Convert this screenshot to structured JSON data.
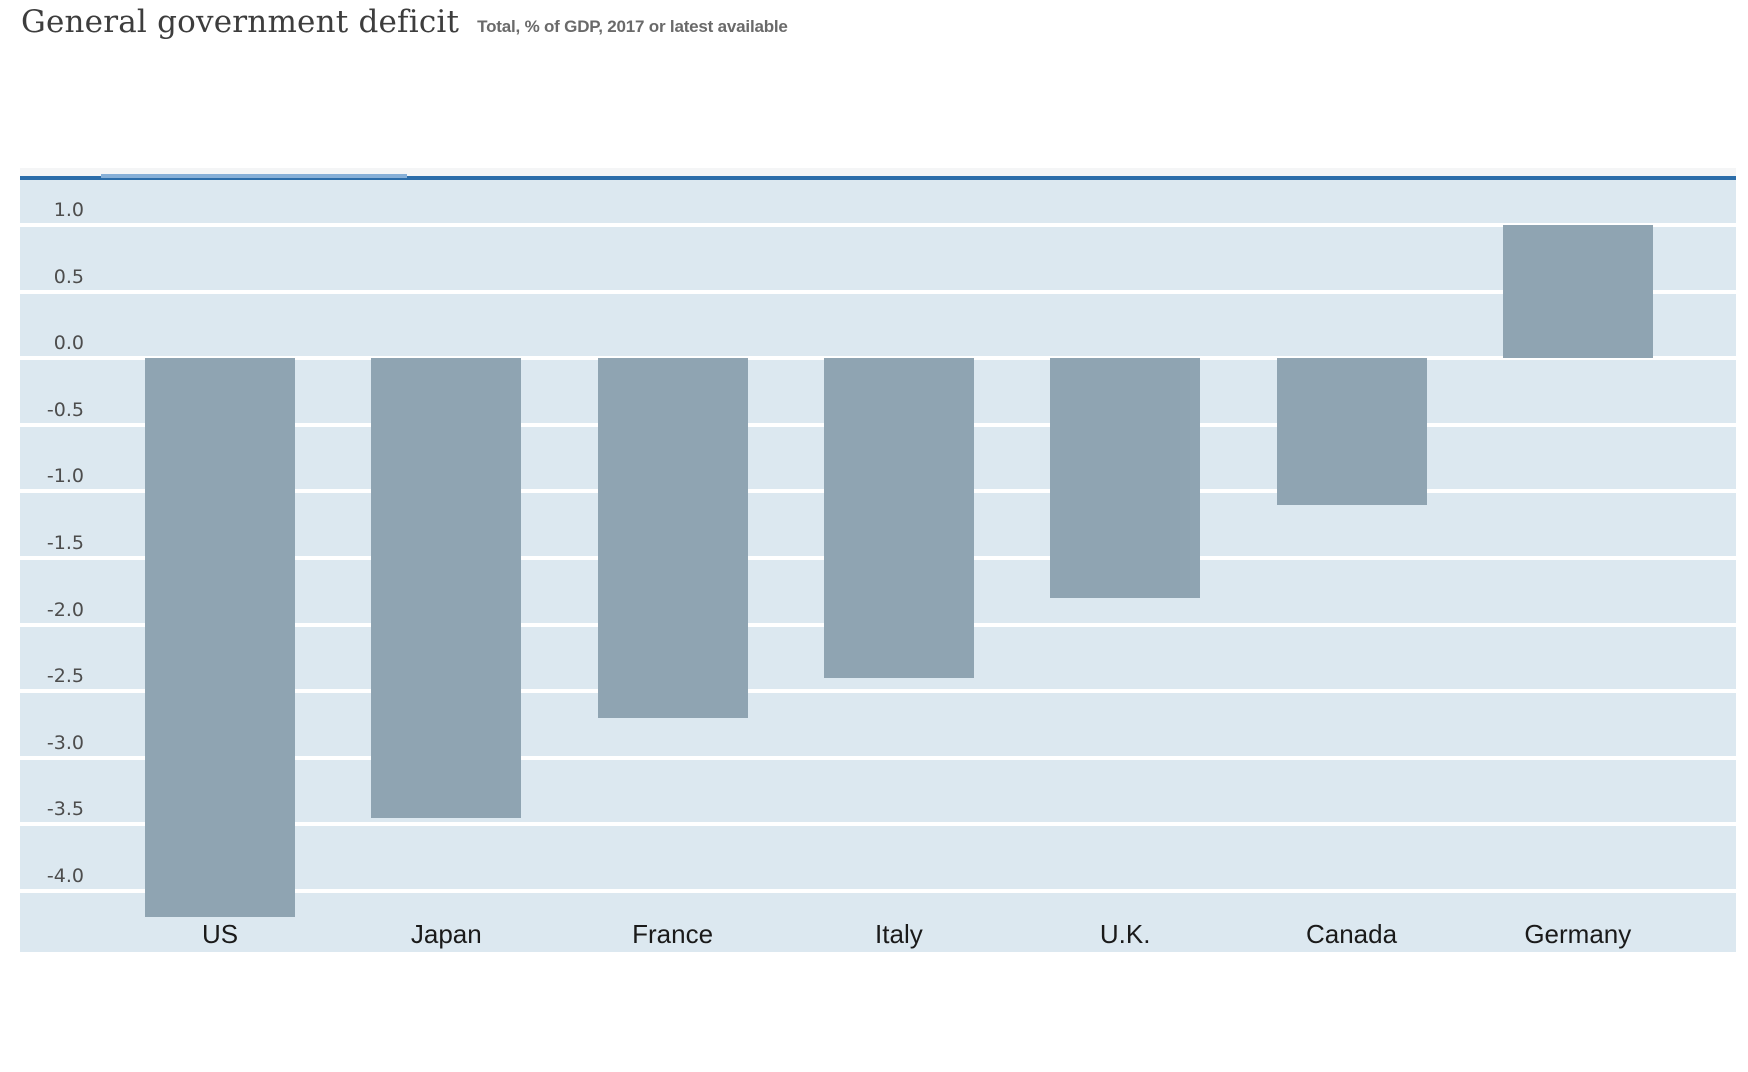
{
  "header": {
    "title": "General government deficit",
    "subtitle": "Total, % of GDP, 2017 or latest available"
  },
  "chart_data": {
    "type": "bar",
    "title": "General government deficit",
    "subtitle": "Total, % of GDP, 2017 or latest available",
    "categories": [
      "US",
      "Japan",
      "France",
      "Italy",
      "U.K.",
      "Canada",
      "Germany"
    ],
    "values": [
      -4.2,
      -3.45,
      -2.7,
      -2.4,
      -1.8,
      -1.1,
      1.0
    ],
    "unit": "% of GDP",
    "xlabel": "",
    "ylabel": "",
    "ylim": [
      -4.46,
      1.34
    ],
    "yticks": [
      1.0,
      0.5,
      0.0,
      -0.5,
      -1.0,
      -1.5,
      -2.0,
      -2.5,
      -3.0,
      -3.5,
      -4.0
    ],
    "ytick_labels": [
      "1.0",
      "0.5",
      "0.0",
      "-0.5",
      "-1.0",
      "-1.5",
      "-2.0",
      "-2.5",
      "-3.0",
      "-3.5",
      "-4.0"
    ],
    "grid": true,
    "legend": false,
    "colors": {
      "bar": "#8fa4b2",
      "plot_background": "#dce8f0",
      "gridline": "#ffffff",
      "axis_line": "#2c6da9",
      "slider_thumb": "#86afd7",
      "top_strip": "#f4f5f6",
      "tick_label": "#4d4d4d",
      "category_label": "#1a1a1a",
      "title": "#3d3d3d",
      "subtitle": "#6a6a6a"
    }
  }
}
